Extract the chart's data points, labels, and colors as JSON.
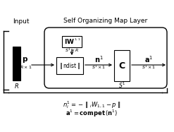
{
  "title": "Self Organizing Map Layer",
  "input_label": "Input",
  "bg_color": "#ffffff"
}
